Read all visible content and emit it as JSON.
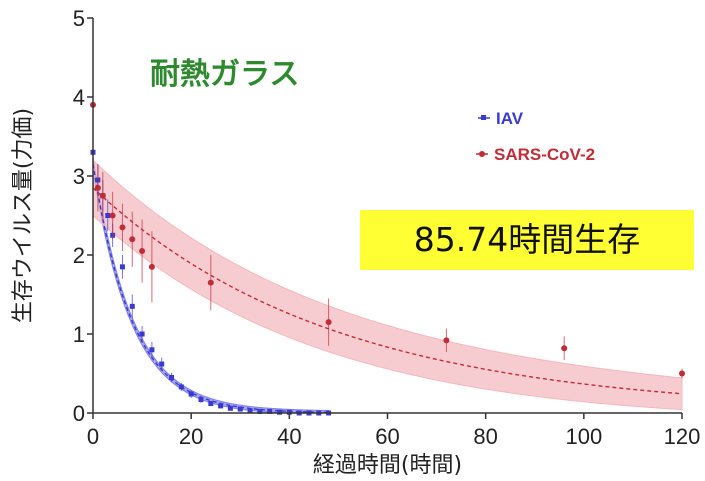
{
  "chart_data": {
    "type": "line",
    "title": "耐熱ガラス",
    "xlabel": "経過時間(時間)",
    "ylabel": "生存ウイルス量(力価)",
    "xlim": [
      0,
      120
    ],
    "ylim": [
      0,
      5
    ],
    "xticks": [
      0,
      20,
      40,
      60,
      80,
      100,
      120
    ],
    "yticks": [
      0,
      1,
      2,
      3,
      4,
      5
    ],
    "legend_position": "right",
    "grid": false,
    "series": [
      {
        "name": "IAV",
        "color": "#3a3ad0",
        "band_color": "#8080e6",
        "marker": "square",
        "points": [
          {
            "x": 0,
            "y": 3.3,
            "err": 0.3
          },
          {
            "x": 1,
            "y": 2.95,
            "err": 0.2
          },
          {
            "x": 2,
            "y": 2.75,
            "err": 0.2
          },
          {
            "x": 3,
            "y": 2.5,
            "err": 0.2
          },
          {
            "x": 4,
            "y": 2.25,
            "err": 0.15
          },
          {
            "x": 6,
            "y": 1.85,
            "err": 0.15
          },
          {
            "x": 8,
            "y": 1.35,
            "err": 0.15
          },
          {
            "x": 10,
            "y": 1.0,
            "err": 0.1
          },
          {
            "x": 12,
            "y": 0.8,
            "err": 0.1
          },
          {
            "x": 14,
            "y": 0.62,
            "err": 0.08
          },
          {
            "x": 16,
            "y": 0.45,
            "err": 0.06
          },
          {
            "x": 18,
            "y": 0.33,
            "err": 0.05
          },
          {
            "x": 20,
            "y": 0.24,
            "err": 0.05
          },
          {
            "x": 22,
            "y": 0.17,
            "err": 0.04
          },
          {
            "x": 24,
            "y": 0.12,
            "err": 0.03
          },
          {
            "x": 26,
            "y": 0.09,
            "err": 0.03
          },
          {
            "x": 28,
            "y": 0.06,
            "err": 0.02
          },
          {
            "x": 30,
            "y": 0.05,
            "err": 0.02
          },
          {
            "x": 32,
            "y": 0.03,
            "err": 0.02
          },
          {
            "x": 34,
            "y": 0.02,
            "err": 0.01
          },
          {
            "x": 36,
            "y": 0.02,
            "err": 0.01
          },
          {
            "x": 38,
            "y": 0.01,
            "err": 0.01
          },
          {
            "x": 40,
            "y": 0.01,
            "err": 0.01
          },
          {
            "x": 42,
            "y": 0.0,
            "err": 0.01
          },
          {
            "x": 44,
            "y": 0.0,
            "err": 0.0
          },
          {
            "x": 46,
            "y": 0.0,
            "err": 0.0
          },
          {
            "x": 48,
            "y": 0.0,
            "err": 0.0
          }
        ],
        "fit": {
          "start": 3.15,
          "rate": 0.125,
          "band": 0.06
        }
      },
      {
        "name": "SARS-CoV-2",
        "color": "#c02d36",
        "band_color": "#f4b7bd",
        "marker": "circle",
        "points": [
          {
            "x": 0,
            "y": 3.9,
            "err": 0.5
          },
          {
            "x": 1,
            "y": 2.85,
            "err": 0.3
          },
          {
            "x": 2,
            "y": 2.75,
            "err": 0.3
          },
          {
            "x": 4,
            "y": 2.5,
            "err": 0.3
          },
          {
            "x": 6,
            "y": 2.35,
            "err": 0.3
          },
          {
            "x": 8,
            "y": 2.2,
            "err": 0.35
          },
          {
            "x": 10,
            "y": 2.05,
            "err": 0.4
          },
          {
            "x": 12,
            "y": 1.85,
            "err": 0.45
          },
          {
            "x": 24,
            "y": 1.65,
            "err": 0.35
          },
          {
            "x": 48,
            "y": 1.15,
            "err": 0.3
          },
          {
            "x": 72,
            "y": 0.92,
            "err": 0.15
          },
          {
            "x": 96,
            "y": 0.82,
            "err": 0.15
          },
          {
            "x": 120,
            "y": 0.5,
            "err": 0.06
          }
        ],
        "fit": {
          "start": 2.85,
          "rate": 0.0205,
          "band_start": 0.35,
          "band_end": 0.2
        }
      }
    ],
    "annotations": [
      {
        "text": "85.74時間生存",
        "background": "#ffff33"
      }
    ]
  }
}
